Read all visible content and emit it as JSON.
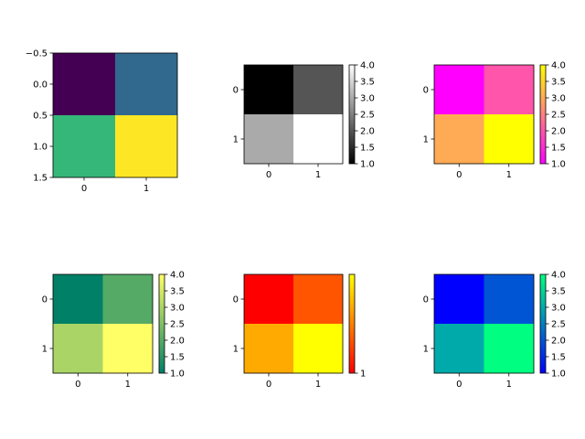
{
  "chart_data": [
    {
      "type": "heatmap",
      "colormap": "viridis",
      "values": [
        [
          1,
          2
        ],
        [
          3,
          4
        ]
      ],
      "colors": [
        [
          "#440154",
          "#31688e"
        ],
        [
          "#35b779",
          "#fde725"
        ]
      ],
      "xticks": [
        "0",
        "1"
      ],
      "yticks": [
        "−0.5",
        "0.0",
        "0.5",
        "1.0",
        "1.5"
      ],
      "colorbar": false
    },
    {
      "type": "heatmap",
      "colormap": "gray",
      "values": [
        [
          1,
          2
        ],
        [
          3,
          4
        ]
      ],
      "colors": [
        [
          "#000000",
          "#555555"
        ],
        [
          "#aaaaaa",
          "#ffffff"
        ]
      ],
      "xticks": [
        "0",
        "1"
      ],
      "yticks": [
        "0",
        "1"
      ],
      "colorbar": true,
      "colorbar_range": [
        1,
        4
      ],
      "colorbar_ticks": [
        "1.0",
        "1.5",
        "2.0",
        "2.5",
        "3.0",
        "3.5",
        "4.0"
      ],
      "colorbar_gradient": [
        "#000000",
        "#ffffff"
      ]
    },
    {
      "type": "heatmap",
      "colormap": "spring",
      "values": [
        [
          1,
          2
        ],
        [
          3,
          4
        ]
      ],
      "colors": [
        [
          "#ff00ff",
          "#ff55aa"
        ],
        [
          "#ffaa55",
          "#ffff00"
        ]
      ],
      "xticks": [
        "0",
        "1"
      ],
      "yticks": [
        "0",
        "1"
      ],
      "colorbar": true,
      "colorbar_range": [
        1,
        4
      ],
      "colorbar_ticks": [
        "1.0",
        "1.5",
        "2.0",
        "2.5",
        "3.0",
        "3.5",
        "4.0"
      ],
      "colorbar_gradient": [
        "#ff00ff",
        "#ffff00"
      ]
    },
    {
      "type": "heatmap",
      "colormap": "summer",
      "values": [
        [
          1,
          2
        ],
        [
          3,
          4
        ]
      ],
      "colors": [
        [
          "#008066",
          "#55aa66"
        ],
        [
          "#aad566",
          "#ffff66"
        ]
      ],
      "xticks": [
        "0",
        "1"
      ],
      "yticks": [
        "0",
        "1"
      ],
      "colorbar": true,
      "colorbar_range": [
        1,
        4
      ],
      "colorbar_ticks": [
        "1.0",
        "1.5",
        "2.0",
        "2.5",
        "3.0",
        "3.5",
        "4.0"
      ],
      "colorbar_gradient": [
        "#008066",
        "#ffff66"
      ]
    },
    {
      "type": "heatmap",
      "colormap": "autumn",
      "values": [
        [
          1,
          2
        ],
        [
          3,
          4
        ]
      ],
      "colors": [
        [
          "#ff0000",
          "#ff5500"
        ],
        [
          "#ffaa00",
          "#ffff00"
        ]
      ],
      "xticks": [
        "0",
        "1"
      ],
      "yticks": [
        "0",
        "1"
      ],
      "colorbar": true,
      "colorbar_range": [
        1,
        4
      ],
      "colorbar_ticks": [
        "1"
      ],
      "colorbar_gradient": [
        "#ff0000",
        "#ffff00"
      ]
    },
    {
      "type": "heatmap",
      "colormap": "winter",
      "values": [
        [
          1,
          2
        ],
        [
          3,
          4
        ]
      ],
      "colors": [
        [
          "#0000ff",
          "#0055d5"
        ],
        [
          "#00aaaa",
          "#00ff80"
        ]
      ],
      "xticks": [
        "0",
        "1"
      ],
      "yticks": [
        "0",
        "1"
      ],
      "colorbar": true,
      "colorbar_range": [
        1,
        4
      ],
      "colorbar_ticks": [
        "1.0",
        "1.5",
        "2.0",
        "2.5",
        "3.0",
        "3.5",
        "4.0"
      ],
      "colorbar_gradient": [
        "#0000ff",
        "#00ff80"
      ]
    }
  ]
}
